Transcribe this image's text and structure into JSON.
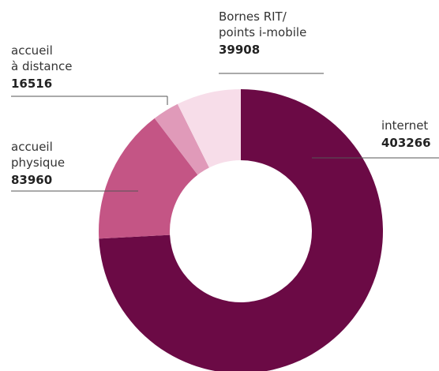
{
  "chart_data": {
    "type": "donut",
    "categories": [
      [
        "internet"
      ],
      [
        "accueil",
        "physique"
      ],
      [
        "accueil",
        "à distance"
      ],
      [
        "Bornes RIT/",
        "points i-mobile"
      ]
    ],
    "values": [
      403266,
      83960,
      16516,
      39908
    ],
    "colors": [
      "#6b0a45",
      "#c45585",
      "#e09ab9",
      "#f7dde9"
    ]
  }
}
